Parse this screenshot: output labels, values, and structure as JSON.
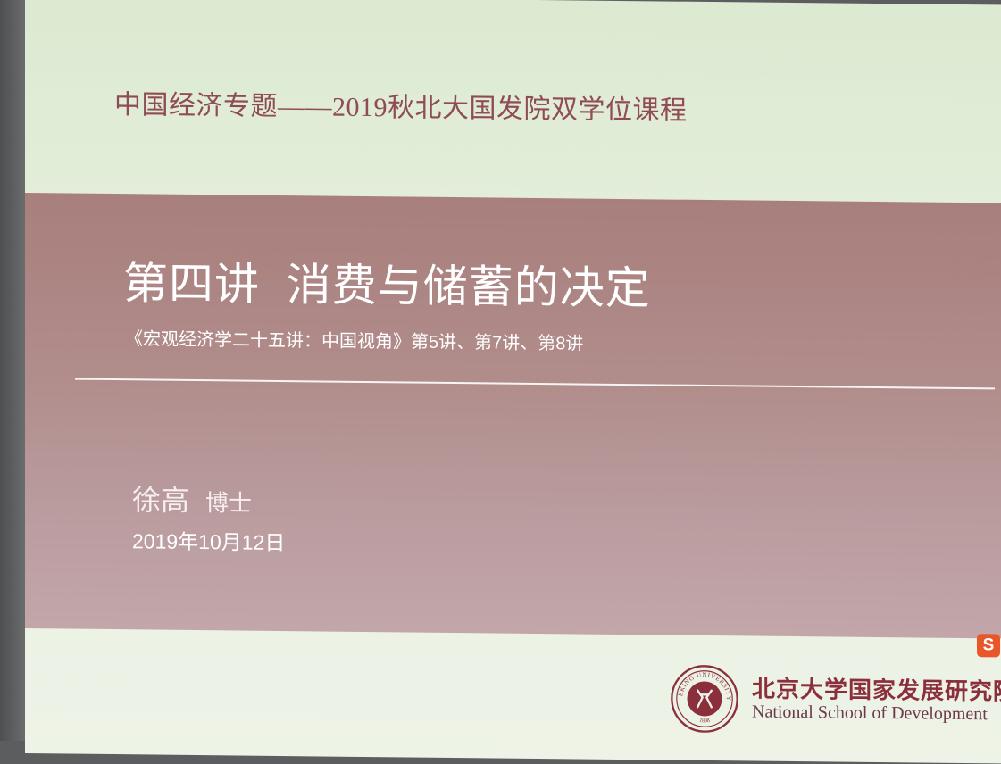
{
  "slide": {
    "course_title": "中国经济专题——2019秋北大国发院双学位课程",
    "lecture_title": "第四讲  消费与储蓄的决定",
    "reading": "《宏观经济学二十五讲：中国视角》第5讲、第7讲、第8讲",
    "author_name": "徐高",
    "author_honorific": "博士",
    "date": "2019年10月12日"
  },
  "footer": {
    "institution_cn": "北京大学国家发展研究院",
    "institution_en": "National School of Development",
    "seal_text": "PEKING UNIVERSITY",
    "seal_year": "1898",
    "badge_letter": "S"
  },
  "colors": {
    "band": "#b08c8a",
    "accent": "#8b2f3c",
    "slide_bg": "#e4eedb"
  }
}
